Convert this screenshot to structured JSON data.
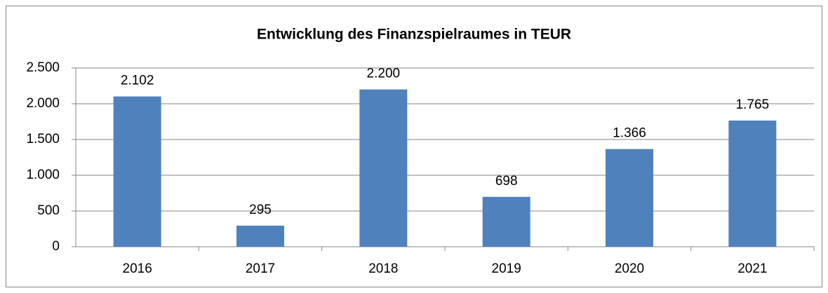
{
  "chart_data": {
    "type": "bar",
    "title": "Entwicklung des Finanzspielraumes in TEUR",
    "categories": [
      "2016",
      "2017",
      "2018",
      "2019",
      "2020",
      "2021"
    ],
    "values": [
      2102,
      295,
      2200,
      698,
      1366,
      1765
    ],
    "value_labels": [
      "2.102",
      "295",
      "2.200",
      "698",
      "1.366",
      "1.765"
    ],
    "color": "#4f81bd",
    "ylim": [
      0,
      2500
    ],
    "yticks": [
      0,
      500,
      {
        "value": 1000,
        "label": "1.000"
      },
      {
        "value": 1500,
        "label": "1.500"
      },
      {
        "value": 2000,
        "label": "2.000"
      },
      {
        "value": 2500,
        "label": "2.500"
      }
    ],
    "grid": true
  }
}
